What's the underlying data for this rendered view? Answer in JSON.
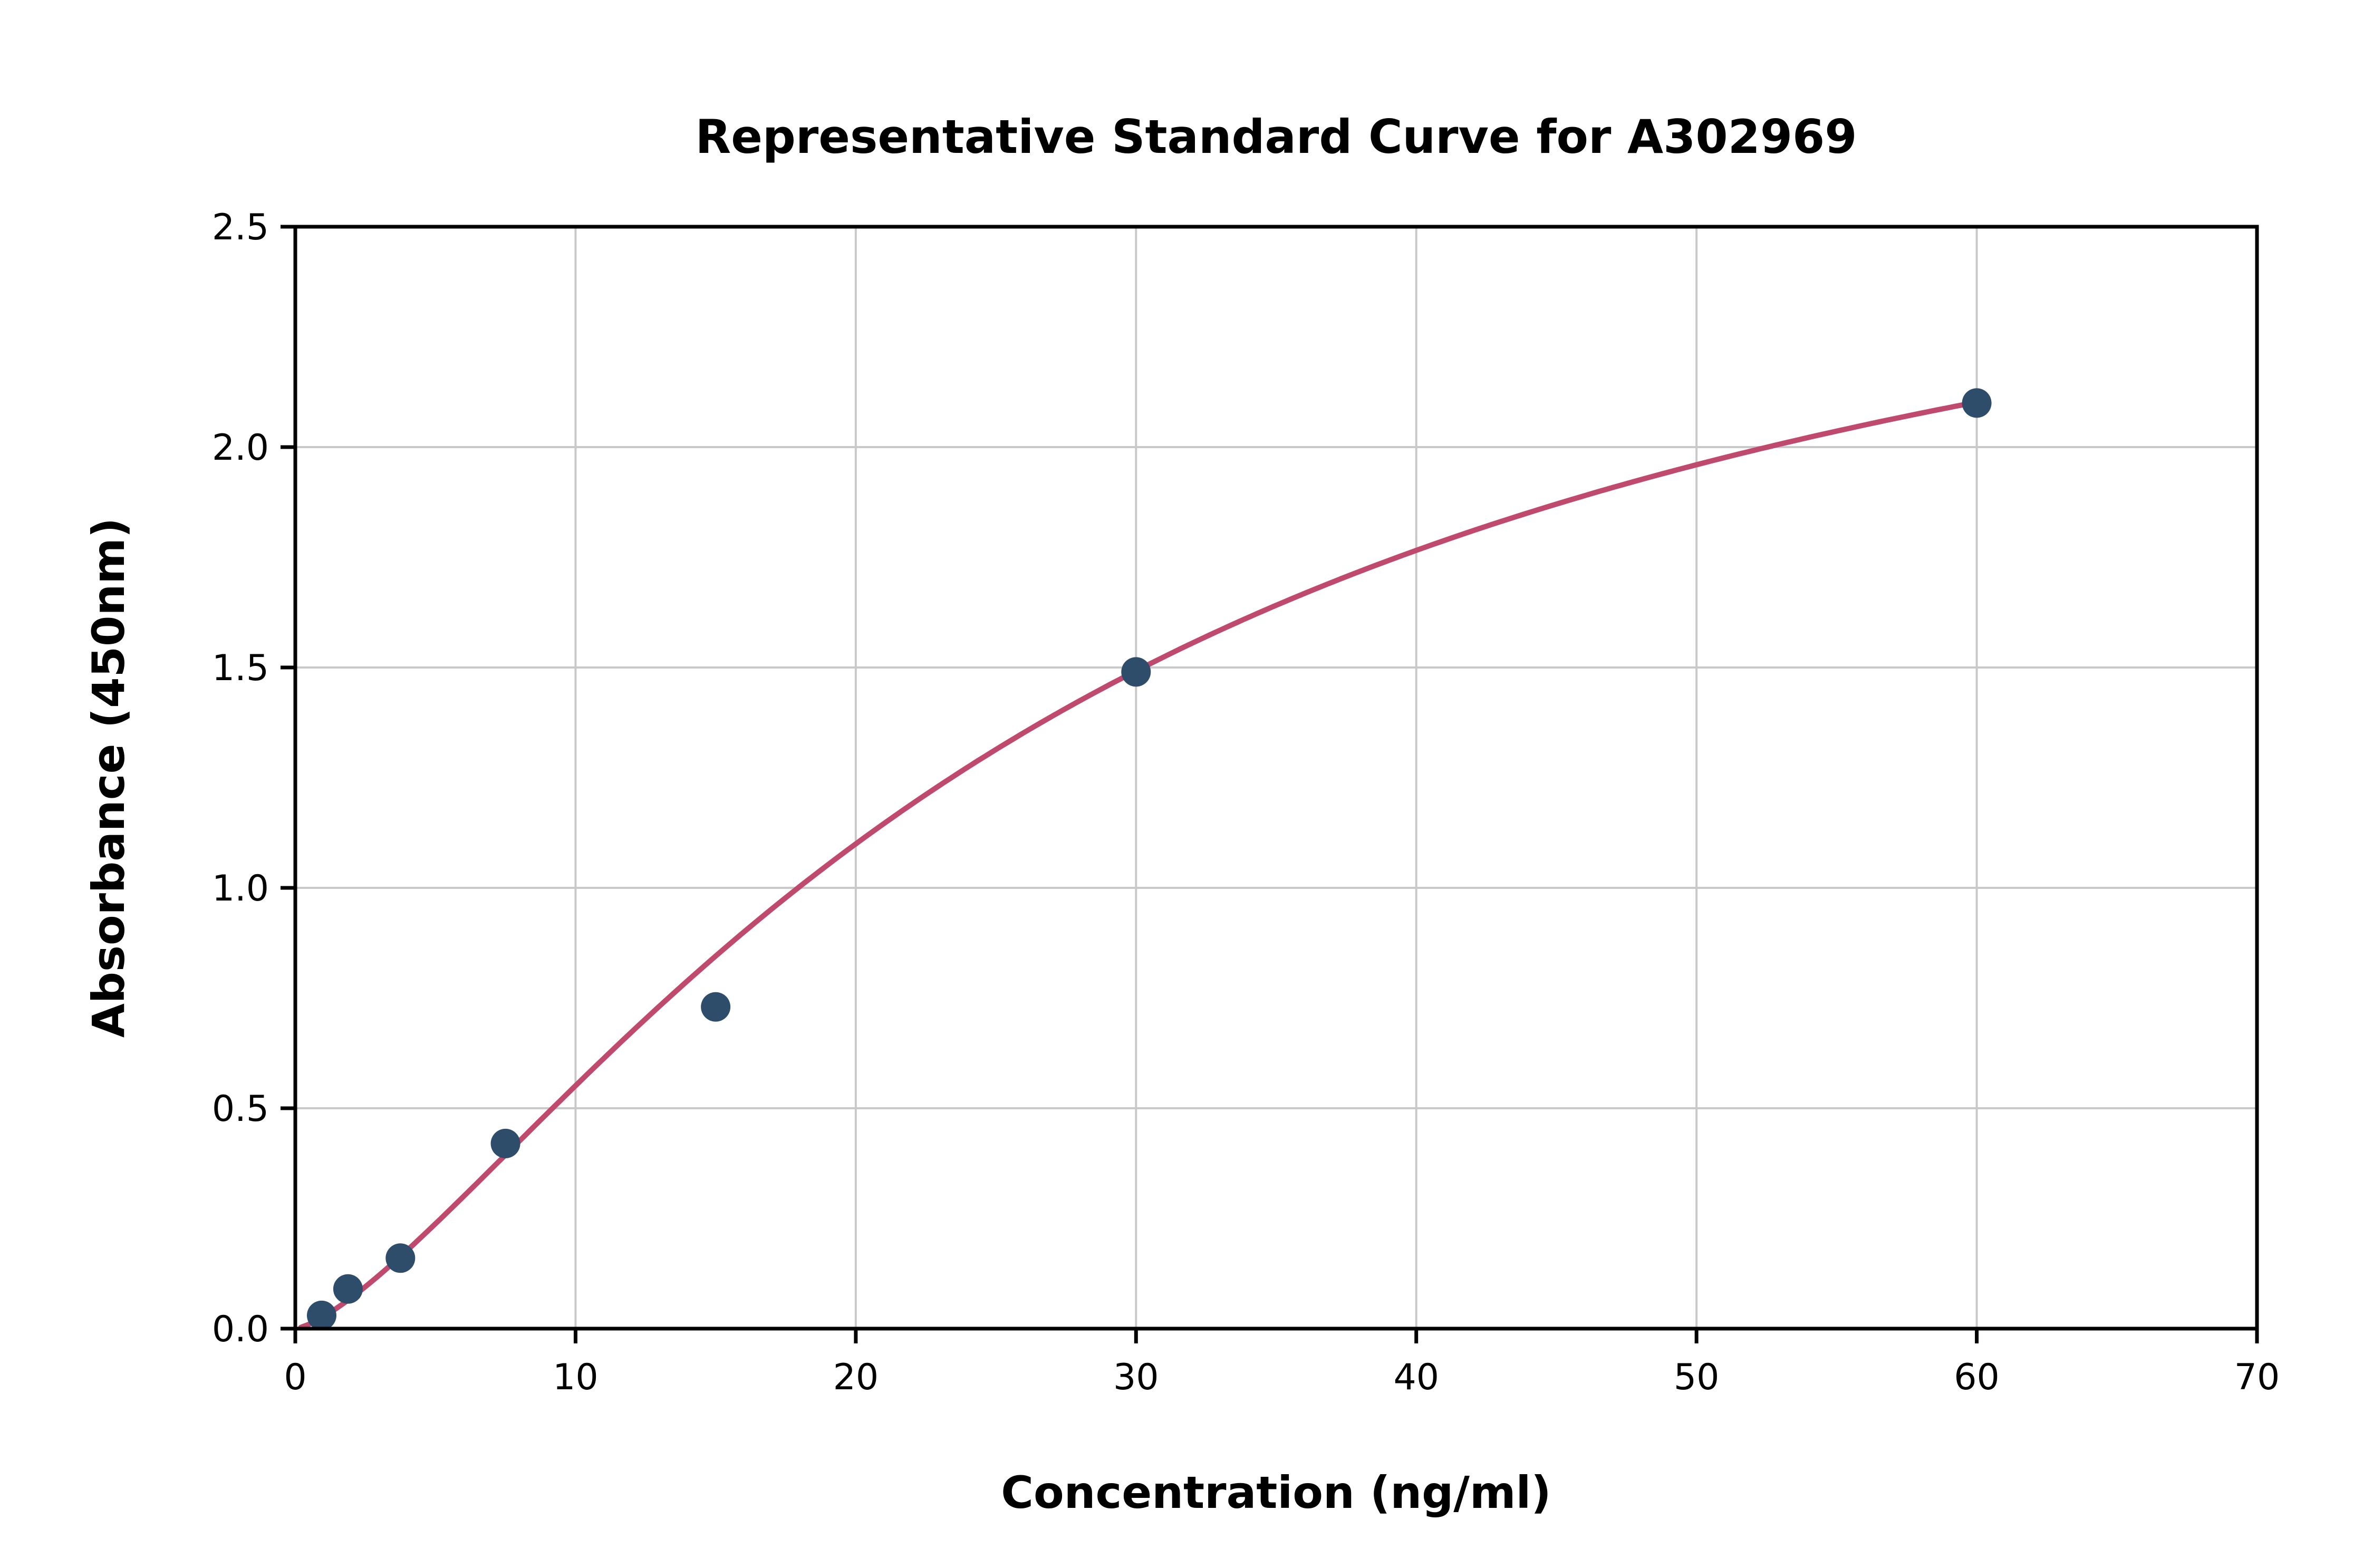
{
  "chart_data": {
    "type": "scatter",
    "title": "Representative Standard Curve for A302969",
    "xlabel": "Concentration (ng/ml)",
    "ylabel": "Absorbance (450nm)",
    "xlim": [
      0,
      70
    ],
    "ylim": [
      0,
      2.5
    ],
    "grid": true,
    "legend_position": "none",
    "x_ticks": {
      "values": [
        0,
        10,
        20,
        30,
        40,
        50,
        60,
        70
      ],
      "labels": [
        "0",
        "10",
        "20",
        "30",
        "40",
        "50",
        "60",
        "70"
      ]
    },
    "y_ticks": {
      "values": [
        0,
        0.5,
        1.0,
        1.5,
        2.0,
        2.5
      ],
      "labels": [
        "0.0",
        "0.5",
        "1.0",
        "1.5",
        "2.0",
        "2.5"
      ]
    },
    "series": [
      {
        "name": "standard-points",
        "type": "scatter",
        "x": [
          0.94,
          1.88,
          3.75,
          7.5,
          15,
          30,
          60
        ],
        "y": [
          0.03,
          0.09,
          0.16,
          0.42,
          0.73,
          1.49,
          2.1
        ]
      },
      {
        "name": "fit-curve",
        "type": "line",
        "model": "4PL (Hill)",
        "params": {
          "a": 0.0,
          "d": 2.8,
          "c": 27.3,
          "b": 1.4
        },
        "x_start": 0.2,
        "x_end": 60.0
      }
    ],
    "colors": {
      "points": "#2e4d6b",
      "curve": "#c04a6e",
      "grid": "#c9c9c9",
      "axis": "#000000",
      "background": "#ffffff"
    }
  }
}
